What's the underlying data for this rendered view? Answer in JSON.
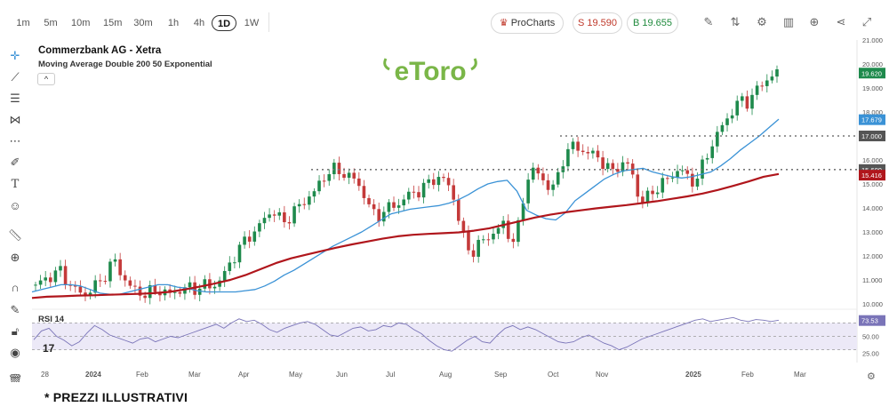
{
  "toolbar": {
    "timeframes": [
      "1m",
      "5m",
      "10m",
      "15m",
      "30m",
      "1h",
      "4h",
      "1D",
      "1W"
    ],
    "active_timeframe": "1D",
    "procharts_label": "ProCharts",
    "sell_label": "S 19.590",
    "buy_label": "B 19.655",
    "icons": [
      "pencil-icon",
      "compare-icon",
      "settings-icon",
      "bar-chart-icon",
      "add-indicator-icon",
      "share-icon",
      "fullscreen-icon"
    ]
  },
  "left_tools": [
    "crosshair-icon",
    "trendline-icon",
    "fib-icon",
    "pattern-icon",
    "forecast-icon",
    "brush-icon",
    "text-icon",
    "emoji-icon",
    "ruler-icon",
    "zoom-icon",
    "magnet-icon",
    "lock-drawing-icon",
    "lock-icon",
    "eye-icon",
    "trash-icon"
  ],
  "header": {
    "title": "Commerzbank AG - Xetra",
    "indicator": "Moving Average Double 200 50 Exponential",
    "collapse_symbol": "^",
    "rsi_label": "RSI 14"
  },
  "logo_text": "eToro",
  "disclaimer": "* PREZZI ILLUSTRATIVI",
  "colors": {
    "up": "#1e8a4c",
    "down": "#c43a3a",
    "ma50": "#3a92d6",
    "ma200": "#b0161c",
    "rsi": "#7a74b8",
    "rsi_band": "#ece9f7",
    "price_tag": "#1e8a4c",
    "ma50_tag": "#3a92d6",
    "ma200_tag": "#b0161c",
    "level_tag": "#555555",
    "logo": "#7ab648"
  },
  "chart_data": {
    "type": "candlestick",
    "y_axis": {
      "range": [
        10.0,
        21.0
      ],
      "ticks": [
        "21.000",
        "20.000",
        "19.000",
        "18.000",
        "17.000",
        "16.000",
        "15.000",
        "14.000",
        "13.000",
        "12.000",
        "11.000",
        "10.000"
      ]
    },
    "x_axis": {
      "labels": [
        "28",
        "2024",
        "Feb",
        "Mar",
        "Apr",
        "May",
        "Jun",
        "Jul",
        "Aug",
        "Sep",
        "Oct",
        "Nov",
        "2025",
        "Feb",
        "Mar"
      ]
    },
    "price_tag": "19.620",
    "ma50_tag": "17.679",
    "ma200_tag": "15.416",
    "levels": [
      {
        "value": 17.0,
        "label": "17.000"
      },
      {
        "value": 15.6,
        "label": "15.600"
      }
    ],
    "close_path": [
      10.8,
      10.9,
      11.1,
      11.25,
      11.4,
      11.0,
      10.7,
      10.5,
      10.4,
      10.6,
      10.8,
      11.0,
      11.5,
      11.8,
      11.3,
      10.9,
      10.6,
      10.5,
      10.4,
      10.5,
      10.6,
      10.5,
      10.4,
      10.5,
      10.6,
      10.7,
      10.6,
      10.7,
      10.8,
      10.7,
      10.9,
      11.2,
      11.7,
      12.1,
      12.5,
      12.8,
      13.0,
      13.3,
      13.7,
      13.9,
      13.6,
      13.4,
      13.7,
      14.0,
      14.2,
      14.5,
      14.7,
      15.1,
      15.5,
      15.6,
      15.5,
      15.4,
      15.3,
      15.0,
      14.6,
      14.0,
      13.6,
      13.8,
      14.0,
      14.1,
      14.2,
      14.5,
      14.6,
      14.7,
      14.9,
      15.1,
      15.3,
      15.2,
      14.9,
      14.3,
      13.1,
      12.3,
      12.2,
      12.5,
      12.7,
      12.9,
      13.1,
      13.3,
      12.8,
      12.6,
      14.0,
      15.3,
      15.6,
      15.3,
      15.0,
      14.8,
      15.3,
      16.2,
      16.6,
      16.5,
      16.4,
      16.3,
      16.2,
      16.0,
      15.7,
      15.5,
      15.8,
      15.9,
      15.6,
      14.6,
      14.3,
      14.5,
      14.8,
      15.0,
      15.2,
      15.4,
      15.7,
      15.3,
      15.1,
      15.3,
      15.9,
      16.5,
      17.0,
      17.4,
      17.8,
      18.2,
      18.5,
      18.4,
      18.7,
      19.0,
      19.3,
      19.5,
      19.6
    ],
    "ma50": [
      10.5,
      10.6,
      10.7,
      10.8,
      10.8,
      10.75,
      10.6,
      10.45,
      10.4,
      10.4,
      10.5,
      10.6,
      10.7,
      10.8,
      10.8,
      10.7,
      10.65,
      10.55,
      10.5,
      10.5,
      10.5,
      10.5,
      10.55,
      10.6,
      10.75,
      10.95,
      11.2,
      11.4,
      11.65,
      11.9,
      12.15,
      12.4,
      12.6,
      12.8,
      13.0,
      13.25,
      13.5,
      13.75,
      13.85,
      13.95,
      14.0,
      14.05,
      14.1,
      14.2,
      14.35,
      14.55,
      14.8,
      15.0,
      15.1,
      15.15,
      14.7,
      13.9,
      13.7,
      13.55,
      13.5,
      13.8,
      14.3,
      14.6,
      14.9,
      15.2,
      15.4,
      15.55,
      15.6,
      15.65,
      15.5,
      15.4,
      15.3,
      15.25,
      15.3,
      15.4,
      15.5,
      15.75,
      16.05,
      16.4,
      16.7,
      17.0,
      17.35,
      17.7
    ],
    "ma200": [
      10.25,
      10.3,
      10.32,
      10.35,
      10.36,
      10.38,
      10.4,
      10.42,
      10.45,
      10.5,
      10.6,
      10.72,
      10.85,
      11.0,
      11.2,
      11.45,
      11.7,
      11.9,
      12.05,
      12.2,
      12.35,
      12.48,
      12.6,
      12.72,
      12.82,
      12.88,
      12.92,
      12.95,
      12.98,
      13.05,
      13.15,
      13.3,
      13.45,
      13.6,
      13.72,
      13.82,
      13.9,
      13.98,
      14.05,
      14.12,
      14.2,
      14.28,
      14.38,
      14.48,
      14.6,
      14.75,
      14.92,
      15.1,
      15.3,
      15.416
    ],
    "rsi": {
      "levels": [
        "73.53",
        "50.00",
        "25.00"
      ],
      "current": 73.53,
      "values": [
        45,
        58,
        62,
        50,
        44,
        36,
        42,
        55,
        66,
        60,
        52,
        48,
        44,
        40,
        46,
        48,
        42,
        46,
        50,
        48,
        52,
        56,
        60,
        64,
        68,
        62,
        70,
        76,
        72,
        74,
        68,
        60,
        56,
        62,
        66,
        70,
        72,
        68,
        60,
        52,
        50,
        56,
        62,
        64,
        58,
        60,
        66,
        64,
        70,
        68,
        60,
        54,
        44,
        36,
        30,
        28,
        36,
        44,
        50,
        42,
        40,
        52,
        62,
        66,
        60,
        64,
        60,
        54,
        48,
        42,
        40,
        42,
        48,
        52,
        46,
        40,
        36,
        30,
        34,
        40,
        46,
        50,
        54,
        58,
        62,
        66,
        70,
        74,
        76,
        72,
        74,
        76,
        78,
        74,
        72,
        75,
        74,
        72,
        74
      ]
    }
  }
}
